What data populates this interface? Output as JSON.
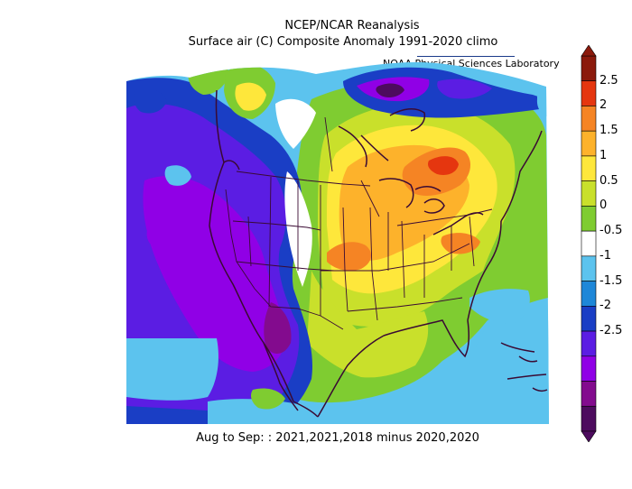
{
  "header": {
    "title_line1": "NCEP/NCAR Reanalysis",
    "title_line2": "Surface air (C) Composite Anomaly 1991-2020 climo",
    "lab_credit": "NOAA Physical Sciences Laboratory"
  },
  "footer": {
    "period": "Aug to Sep: : 2021,2021,2018 minus 2020,2020"
  },
  "colorbar": {
    "ticks": [
      "2.5",
      "2",
      "1.5",
      "1",
      "0.5",
      "0",
      "-0.5",
      "-1",
      "-1.5",
      "-2",
      "-2.5"
    ],
    "colors": [
      "#8b1a0c",
      "#e5360f",
      "#f58424",
      "#fdb22b",
      "#fee73b",
      "#c9e02b",
      "#7fcc31",
      "#ffffff",
      "#5cc3ee",
      "#1e87d8",
      "#1a3ec5",
      "#5b1de3",
      "#9000e6",
      "#830b8e",
      "#4d0b5e"
    ]
  }
}
